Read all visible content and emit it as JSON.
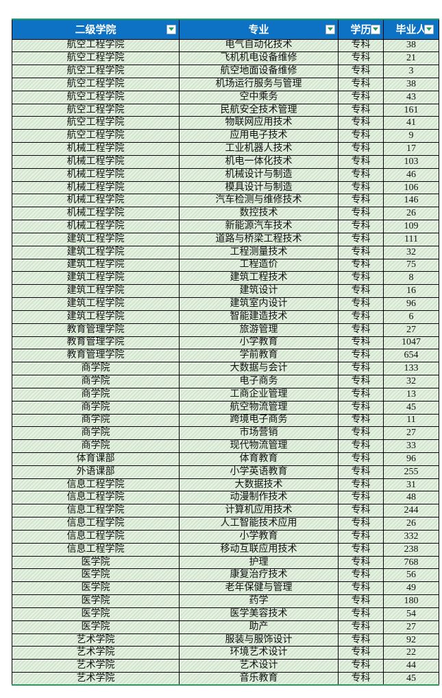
{
  "app": {
    "description_label": "spreadsheet-table-with-autofilter"
  },
  "colors": {
    "header_background": "#0d72c4",
    "header_text": "#ffffff",
    "row_fill_base": "#d2e5cf",
    "row_fill_stripe": "#e7f2e3",
    "grid_line": "#000000",
    "table_accent_border": "#1f9e60",
    "filter_arrow": "#1f9e60"
  },
  "table": {
    "headers": [
      {
        "label": "二级学院",
        "filter_icon": "filter-dropdown-icon"
      },
      {
        "label": "专业",
        "filter_icon": "filter-dropdown-icon"
      },
      {
        "label": "学历",
        "filter_icon": "filter-dropdown-icon"
      },
      {
        "label": "毕业人",
        "filter_icon": "filter-dropdown-icon"
      }
    ],
    "rows": [
      [
        "航空工程学院",
        "电气自动化技术",
        "专科",
        38
      ],
      [
        "航空工程学院",
        "飞机机电设备维修",
        "专科",
        21
      ],
      [
        "航空工程学院",
        "航空地面设备维修",
        "专科",
        3
      ],
      [
        "航空工程学院",
        "机场运行服务与管理",
        "专科",
        38
      ],
      [
        "航空工程学院",
        "空中乘务",
        "专科",
        43
      ],
      [
        "航空工程学院",
        "民航安全技术管理",
        "专科",
        161
      ],
      [
        "航空工程学院",
        "物联网应用技术",
        "专科",
        41
      ],
      [
        "航空工程学院",
        "应用电子技术",
        "专科",
        9
      ],
      [
        "机械工程学院",
        "工业机器人技术",
        "专科",
        17
      ],
      [
        "机械工程学院",
        "机电一体化技术",
        "专科",
        103
      ],
      [
        "机械工程学院",
        "机械设计与制造",
        "专科",
        46
      ],
      [
        "机械工程学院",
        "模具设计与制造",
        "专科",
        106
      ],
      [
        "机械工程学院",
        "汽车检测与维修技术",
        "专科",
        146
      ],
      [
        "机械工程学院",
        "数控技术",
        "专科",
        26
      ],
      [
        "机械工程学院",
        "新能源汽车技术",
        "专科",
        109
      ],
      [
        "建筑工程学院",
        "道路与桥梁工程技术",
        "专科",
        111
      ],
      [
        "建筑工程学院",
        "工程测量技术",
        "专科",
        32
      ],
      [
        "建筑工程学院",
        "工程造价",
        "专科",
        75
      ],
      [
        "建筑工程学院",
        "建筑工程技术",
        "专科",
        8
      ],
      [
        "建筑工程学院",
        "建筑设计",
        "专科",
        16
      ],
      [
        "建筑工程学院",
        "建筑室内设计",
        "专科",
        96
      ],
      [
        "建筑工程学院",
        "智能建造技术",
        "专科",
        6
      ],
      [
        "教育管理学院",
        "旅游管理",
        "专科",
        27
      ],
      [
        "教育管理学院",
        "小学教育",
        "专科",
        1047
      ],
      [
        "教育管理学院",
        "学前教育",
        "专科",
        654
      ],
      [
        "商学院",
        "大数据与会计",
        "专科",
        133
      ],
      [
        "商学院",
        "电子商务",
        "专科",
        32
      ],
      [
        "商学院",
        "工商企业管理",
        "专科",
        13
      ],
      [
        "商学院",
        "航空物流管理",
        "专科",
        45
      ],
      [
        "商学院",
        "跨境电子商务",
        "专科",
        11
      ],
      [
        "商学院",
        "市场营销",
        "专科",
        27
      ],
      [
        "商学院",
        "现代物流管理",
        "专科",
        33
      ],
      [
        "体育课部",
        "体育教育",
        "专科",
        96
      ],
      [
        "外语课部",
        "小学英语教育",
        "专科",
        255
      ],
      [
        "信息工程学院",
        "大数据技术",
        "专科",
        31
      ],
      [
        "信息工程学院",
        "动漫制作技术",
        "专科",
        48
      ],
      [
        "信息工程学院",
        "计算机应用技术",
        "专科",
        244
      ],
      [
        "信息工程学院",
        "人工智能技术应用",
        "专科",
        26
      ],
      [
        "信息工程学院",
        "小学教育",
        "专科",
        332
      ],
      [
        "信息工程学院",
        "移动互联应用技术",
        "专科",
        238
      ],
      [
        "医学院",
        "护理",
        "专科",
        768
      ],
      [
        "医学院",
        "康复治疗技术",
        "专科",
        56
      ],
      [
        "医学院",
        "老年保健与管理",
        "专科",
        49
      ],
      [
        "医学院",
        "药学",
        "专科",
        180
      ],
      [
        "医学院",
        "医学美容技术",
        "专科",
        54
      ],
      [
        "医学院",
        "助产",
        "专科",
        27
      ],
      [
        "艺术学院",
        "服装与服饰设计",
        "专科",
        92
      ],
      [
        "艺术学院",
        "环境艺术设计",
        "专科",
        22
      ],
      [
        "艺术学院",
        "艺术设计",
        "专科",
        44
      ],
      [
        "艺术学院",
        "音乐教育",
        "专科",
        45
      ]
    ]
  }
}
